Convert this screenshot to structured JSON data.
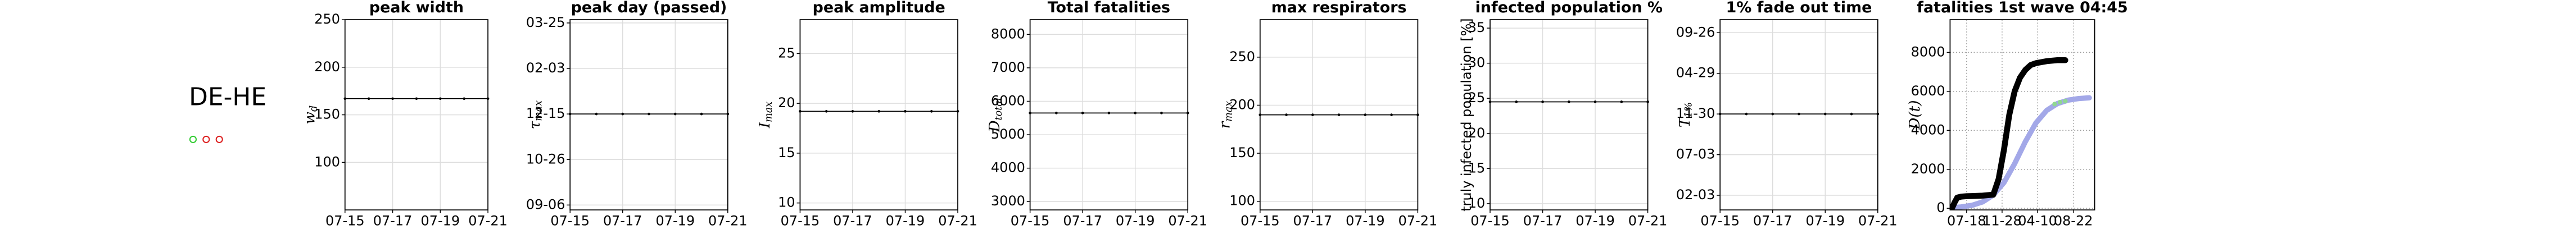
{
  "region": {
    "label": "DE-HE"
  },
  "chart_data": [
    {
      "type": "line",
      "title": "peak width",
      "ylabel": "w",
      "ylabel_sub": "d",
      "x": [
        0,
        1,
        2,
        3,
        4,
        5,
        6
      ],
      "xlim": [
        0,
        6
      ],
      "xticks": [
        {
          "value": 0,
          "label": "07-15"
        },
        {
          "value": 2,
          "label": "07-17"
        },
        {
          "value": 4,
          "label": "07-19"
        },
        {
          "value": 6,
          "label": "07-21"
        }
      ],
      "ylim": [
        50,
        250
      ],
      "yticks": [
        100,
        150,
        200,
        250
      ],
      "grid": "solid",
      "series": [
        {
          "color": "#000000",
          "width": 0.6,
          "markers": true,
          "values": [
            167,
            167,
            167,
            167,
            167,
            167,
            167
          ]
        }
      ]
    },
    {
      "type": "line",
      "title": "peak day (passed)",
      "ylabel": "τ",
      "ylabel_sub": "max",
      "x": [
        0,
        1,
        2,
        3,
        4,
        5,
        6
      ],
      "xlim": [
        0,
        6
      ],
      "xticks": [
        {
          "value": 0,
          "label": "07-15"
        },
        {
          "value": 2,
          "label": "07-17"
        },
        {
          "value": 4,
          "label": "07-19"
        },
        {
          "value": 6,
          "label": "07-21"
        }
      ],
      "ylim": [
        -5.4,
        203.6
      ],
      "yticks": [
        {
          "value": 0,
          "label": "09-06"
        },
        {
          "value": 50,
          "label": "10-26"
        },
        {
          "value": 100,
          "label": "12-15"
        },
        {
          "value": 150,
          "label": "02-03"
        },
        {
          "value": 200,
          "label": "03-25"
        }
      ],
      "grid": "solid",
      "series": [
        {
          "color": "#000000",
          "width": 0.6,
          "markers": true,
          "values": [
            100,
            100,
            100,
            100,
            100,
            100,
            100
          ]
        }
      ]
    },
    {
      "type": "line",
      "title": "peak amplitude",
      "ylabel": "I",
      "ylabel_sub": "max",
      "x": [
        0,
        1,
        2,
        3,
        4,
        5,
        6
      ],
      "xlim": [
        0,
        6
      ],
      "xticks": [
        {
          "value": 0,
          "label": "07-15"
        },
        {
          "value": 2,
          "label": "07-17"
        },
        {
          "value": 4,
          "label": "07-19"
        },
        {
          "value": 6,
          "label": "07-21"
        }
      ],
      "ylim": [
        9.3,
        28.4
      ],
      "yticks": [
        10,
        15,
        20,
        25
      ],
      "grid": "solid",
      "series": [
        {
          "color": "#000000",
          "width": 0.6,
          "markers": true,
          "values": [
            19.2,
            19.2,
            19.2,
            19.2,
            19.2,
            19.2,
            19.2
          ]
        }
      ]
    },
    {
      "type": "line",
      "title": "Total fatalities",
      "ylabel": "D",
      "ylabel_sub": "total",
      "x": [
        0,
        1,
        2,
        3,
        4,
        5,
        6
      ],
      "xlim": [
        0,
        6
      ],
      "xticks": [
        {
          "value": 0,
          "label": "07-15"
        },
        {
          "value": 2,
          "label": "07-17"
        },
        {
          "value": 4,
          "label": "07-19"
        },
        {
          "value": 6,
          "label": "07-21"
        }
      ],
      "ylim": [
        2750,
        8440
      ],
      "yticks": [
        3000,
        4000,
        5000,
        6000,
        7000,
        8000
      ],
      "grid": "solid",
      "series": [
        {
          "color": "#000000",
          "width": 0.6,
          "markers": true,
          "values": [
            5650,
            5650,
            5650,
            5650,
            5650,
            5650,
            5650
          ]
        }
      ]
    },
    {
      "type": "line",
      "title": "max respirators",
      "ylabel": "r",
      "ylabel_sub": "max",
      "x": [
        0,
        1,
        2,
        3,
        4,
        5,
        6
      ],
      "xlim": [
        0,
        6
      ],
      "xticks": [
        {
          "value": 0,
          "label": "07-15"
        },
        {
          "value": 2,
          "label": "07-17"
        },
        {
          "value": 4,
          "label": "07-19"
        },
        {
          "value": 6,
          "label": "07-21"
        }
      ],
      "ylim": [
        91,
        289
      ],
      "yticks": [
        100,
        150,
        200,
        250
      ],
      "grid": "solid",
      "series": [
        {
          "color": "#000000",
          "width": 0.6,
          "markers": true,
          "values": [
            190,
            190,
            190,
            190,
            190,
            190,
            190
          ]
        }
      ]
    },
    {
      "type": "line",
      "title": "infected population %",
      "ylabel": "truly infected population [%]",
      "x": [
        0,
        1,
        2,
        3,
        4,
        5,
        6
      ],
      "xlim": [
        0,
        6
      ],
      "xticks": [
        {
          "value": 0,
          "label": "07-15"
        },
        {
          "value": 2,
          "label": "07-17"
        },
        {
          "value": 4,
          "label": "07-19"
        },
        {
          "value": 6,
          "label": "07-21"
        }
      ],
      "ylim": [
        9.1,
        36.2
      ],
      "yticks": [
        10,
        15,
        20,
        25,
        30,
        35
      ],
      "grid": "solid",
      "series": [
        {
          "color": "#000000",
          "width": 0.6,
          "markers": true,
          "values": [
            24.5,
            24.5,
            24.5,
            24.5,
            24.5,
            24.5,
            24.5
          ]
        }
      ]
    },
    {
      "type": "line",
      "title": "1% fade out time",
      "ylabel": "T",
      "ylabel_sub": "1%",
      "x": [
        0,
        1,
        2,
        3,
        4,
        5,
        6
      ],
      "xlim": [
        0,
        6
      ],
      "xticks": [
        {
          "value": 0,
          "label": "07-15"
        },
        {
          "value": 2,
          "label": "07-17"
        },
        {
          "value": 4,
          "label": "07-19"
        },
        {
          "value": 6,
          "label": "07-21"
        }
      ],
      "ylim": [
        -54,
        648
      ],
      "yticks": [
        {
          "value": 0,
          "label": "02-03"
        },
        {
          "value": 150,
          "label": "07-03"
        },
        {
          "value": 300,
          "label": "11-30"
        },
        {
          "value": 450,
          "label": "04-29"
        },
        {
          "value": 600,
          "label": "09-26"
        }
      ],
      "grid": "solid",
      "series": [
        {
          "color": "#000000",
          "width": 0.6,
          "markers": true,
          "values": [
            300,
            300,
            300,
            300,
            300,
            300,
            300
          ]
        }
      ]
    },
    {
      "type": "line",
      "title": "fatalities 1st wave 04:45",
      "ylabel": "D(t)",
      "xlim": [
        -62,
        480
      ],
      "xticks": [
        {
          "value": 0,
          "label": "07-18"
        },
        {
          "value": 133,
          "label": "11-28"
        },
        {
          "value": 266,
          "label": "04-10"
        },
        {
          "value": 400,
          "label": "08-22"
        }
      ],
      "ylim": [
        -84,
        9680
      ],
      "yticks": [
        0,
        2000,
        4000,
        6000,
        8000
      ],
      "grid": "dotted",
      "series": [
        {
          "color": "#a3a8e8",
          "width": 3.2,
          "markers": false,
          "x": [
            -60,
            -20,
            20,
            60,
            100,
            140,
            180,
            220,
            260,
            300,
            340,
            380,
            420,
            460
          ],
          "values": [
            31,
            69,
            152,
            327,
            681,
            1319,
            2289,
            3413,
            4381,
            5021,
            5373,
            5549,
            5632,
            5669
          ]
        },
        {
          "color": "#000000",
          "width": 3.6,
          "markers": false,
          "x": [
            -55,
            -45,
            -35,
            -20,
            0,
            20,
            60,
            100,
            120,
            140,
            160,
            180,
            200,
            220,
            240,
            260,
            300,
            340,
            370
          ],
          "values": [
            0,
            300,
            550,
            600,
            620,
            630,
            650,
            700,
            1500,
            3000,
            4800,
            6000,
            6700,
            7100,
            7350,
            7450,
            7550,
            7600,
            7600
          ]
        },
        {
          "color": "#90d890",
          "width": 0,
          "markers": true,
          "x": [
            330,
            350,
            370
          ],
          "values": [
            5350,
            5450,
            5500
          ]
        }
      ]
    }
  ]
}
